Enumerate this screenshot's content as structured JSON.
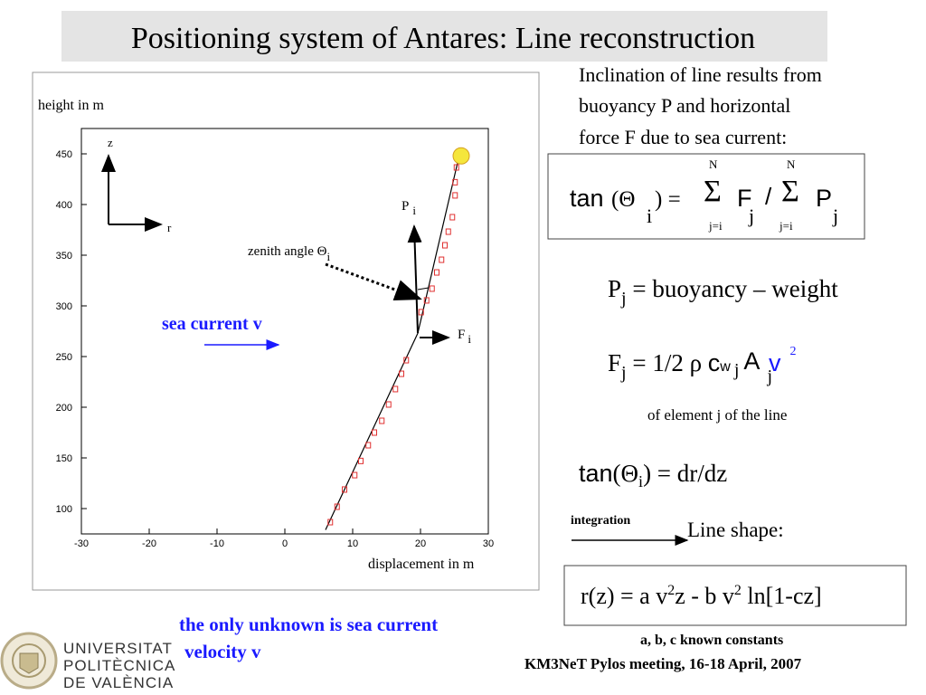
{
  "title": "Positioning system of Antares: Line reconstruction",
  "chart_data": {
    "type": "scatter",
    "ylabel": "height in m",
    "xlabel": "displacement in m",
    "xlim": [
      -30,
      30
    ],
    "ylim": [
      75,
      475
    ],
    "xticks": [
      -30,
      -20,
      -10,
      0,
      10,
      20,
      30
    ],
    "yticks": [
      100,
      150,
      200,
      250,
      300,
      350,
      400,
      450
    ],
    "series": [
      {
        "style": "line",
        "color": "#000000",
        "x": [
          6,
          19.6,
          25.7
        ],
        "values": [
          79,
          273,
          448
        ]
      },
      {
        "style": "squares",
        "color": "#e03030",
        "x": [
          6.7,
          7.7,
          8.8,
          10.3,
          11.2,
          12.3,
          13.2,
          14.3,
          15.3,
          16.3,
          17.2,
          17.9,
          20.1,
          20.9,
          21.7,
          22.4,
          23.1,
          23.6,
          24.1,
          24.7,
          25.1,
          25.1,
          25.3
        ],
        "values": [
          86.6,
          101.8,
          118.8,
          133,
          147,
          162.5,
          175,
          186.6,
          202.7,
          217.9,
          233,
          246.4,
          293.8,
          305.4,
          317,
          333,
          345.5,
          359.8,
          373.2,
          387.5,
          409,
          422,
          436.6
        ]
      },
      {
        "style": "circle",
        "color": "#f5e63c",
        "x": [
          26
        ],
        "values": [
          448
        ]
      }
    ],
    "annotations": {
      "z": "z",
      "r": "r",
      "p": "P",
      "p_sub": "i",
      "zenith": "zenith angle Θ",
      "zenith_sub": "i",
      "f": "F",
      "f_sub": "i",
      "current": "sea current v"
    }
  },
  "intro": [
    "Inclination of line results from",
    "buoyancy P and horizontal",
    "force F due to sea current:"
  ],
  "formula1": {
    "tan": "tan",
    "open": "(Θ",
    "i": "i",
    "close": ") =",
    "sigma1": "Σ",
    "n1": "N",
    "from1": "j=i",
    "f": "F",
    "fj": "j",
    "slash": "/",
    "sigma2": "Σ",
    "n2": "N",
    "from2": "j=i",
    "p": "P",
    "pj": "j"
  },
  "buoyancy": {
    "p": "P",
    "j": "j",
    "rest": " = buoyancy – weight"
  },
  "force": {
    "f": "F",
    "j": "j",
    "eq": " = 1/2 ρ ",
    "c": "c",
    "w": "w",
    "j2": "j",
    "a": "A",
    "j3": "j",
    "v": "v",
    "sq": "2"
  },
  "element": "of element j of the line",
  "formula2": {
    "tan": "tan",
    "open": "(Θ",
    "i": "i",
    "rest": ") = dr/dz"
  },
  "integration": "integration",
  "line_shape": "Line shape:",
  "formula3": {
    "a": "r(z)  = a v",
    "s1": "2",
    "b": "z - b v",
    "s2": "2",
    "c": " ln[1-cz]"
  },
  "constants": "a, b, c known constants",
  "meeting": "KM3NeT Pylos meeting, 16-18 April, 2007",
  "unknown": [
    "the only unknown is sea current",
    "velocity v"
  ],
  "logo": [
    "UNIVERSITAT",
    "POLITÈCNICA",
    "DE VALÈNCIA"
  ]
}
